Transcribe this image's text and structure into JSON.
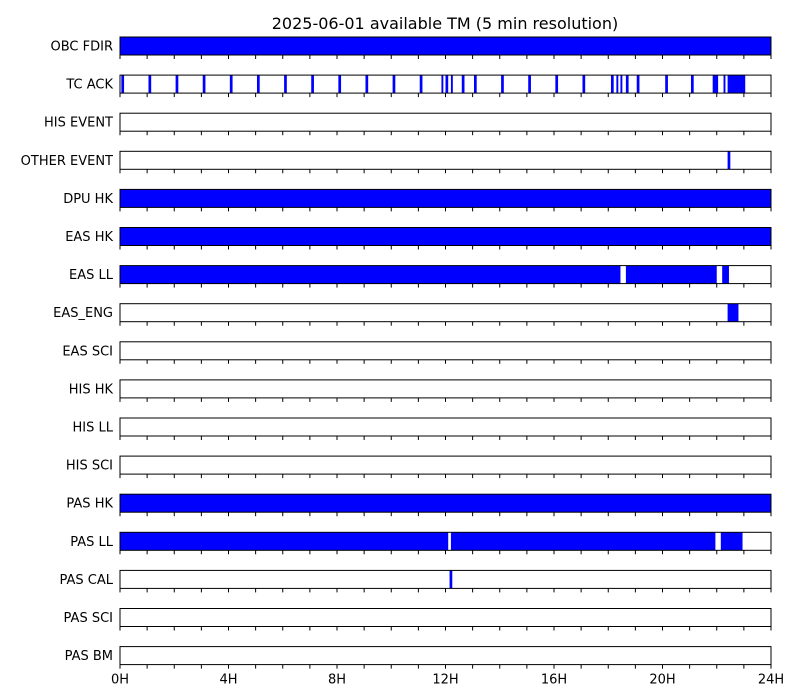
{
  "chart_data": {
    "type": "timeline",
    "title": "2025-06-01 available TM (5 min resolution)",
    "x_range_hours": [
      0,
      24
    ],
    "x_ticks": [
      "0H",
      "4H",
      "8H",
      "12H",
      "16H",
      "20H",
      "24H"
    ],
    "tick_step_hours": 1,
    "bar_color": "#0000ff",
    "rows": [
      {
        "name": "OBC FDIR",
        "intervals": [
          [
            0,
            24
          ]
        ]
      },
      {
        "name": "TC ACK",
        "intervals": [
          [
            0.05,
            0.15
          ],
          [
            1.05,
            1.15
          ],
          [
            2.05,
            2.15
          ],
          [
            3.05,
            3.15
          ],
          [
            4.05,
            4.15
          ],
          [
            5.05,
            5.15
          ],
          [
            6.05,
            6.15
          ],
          [
            7.05,
            7.15
          ],
          [
            8.05,
            8.15
          ],
          [
            9.05,
            9.15
          ],
          [
            10.05,
            10.15
          ],
          [
            11.05,
            11.15
          ],
          [
            11.85,
            11.92
          ],
          [
            12.0,
            12.1
          ],
          [
            12.2,
            12.27
          ],
          [
            12.6,
            12.7
          ],
          [
            13.05,
            13.15
          ],
          [
            14.05,
            14.15
          ],
          [
            15.05,
            15.15
          ],
          [
            16.05,
            16.15
          ],
          [
            17.05,
            17.15
          ],
          [
            18.1,
            18.2
          ],
          [
            18.3,
            18.37
          ],
          [
            18.45,
            18.52
          ],
          [
            18.65,
            18.75
          ],
          [
            19.05,
            19.15
          ],
          [
            20.1,
            20.2
          ],
          [
            21.05,
            21.15
          ],
          [
            21.85,
            22.05
          ],
          [
            22.25,
            22.32
          ],
          [
            22.4,
            23.05
          ]
        ]
      },
      {
        "name": "HIS EVENT",
        "intervals": []
      },
      {
        "name": "OTHER EVENT",
        "intervals": [
          [
            22.4,
            22.5
          ]
        ]
      },
      {
        "name": "DPU HK",
        "intervals": [
          [
            0,
            24
          ]
        ]
      },
      {
        "name": "EAS HK",
        "intervals": [
          [
            0,
            24
          ]
        ]
      },
      {
        "name": "EAS LL",
        "intervals": [
          [
            0,
            18.45
          ],
          [
            18.65,
            22.0
          ],
          [
            22.2,
            22.45
          ]
        ]
      },
      {
        "name": "EAS_ENG",
        "intervals": [
          [
            22.4,
            22.8
          ]
        ]
      },
      {
        "name": "EAS SCI",
        "intervals": []
      },
      {
        "name": "HIS HK",
        "intervals": []
      },
      {
        "name": "HIS LL",
        "intervals": []
      },
      {
        "name": "HIS SCI",
        "intervals": []
      },
      {
        "name": "PAS HK",
        "intervals": [
          [
            0,
            24
          ]
        ]
      },
      {
        "name": "PAS LL",
        "intervals": [
          [
            0,
            12.1
          ],
          [
            12.2,
            21.95
          ],
          [
            22.15,
            22.95
          ]
        ]
      },
      {
        "name": "PAS CAL",
        "intervals": [
          [
            12.15,
            12.25
          ]
        ]
      },
      {
        "name": "PAS SCI",
        "intervals": []
      },
      {
        "name": "PAS BM",
        "intervals": []
      }
    ]
  }
}
